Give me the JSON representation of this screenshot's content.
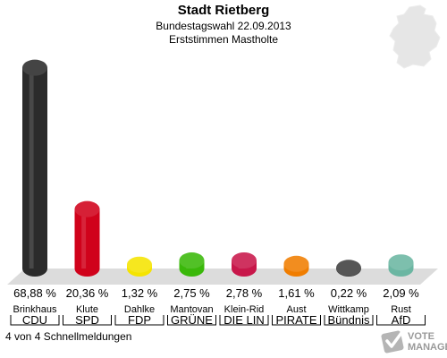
{
  "header": {
    "title": "Stadt Rietberg",
    "subtitle": "Bundestagswahl 22.09.2013",
    "subtitle2": "Erststimmen Mastholte"
  },
  "footer": {
    "status": "4 von 4 Schnellmeldungen"
  },
  "logo": {
    "line1": "VOTE",
    "line2": "MANAGER"
  },
  "chart_data": {
    "type": "bar",
    "categories": [
      "Brinkhaus",
      "Klute",
      "Dahlke",
      "Mantovan",
      "Klein-Rid",
      "Aust",
      "Wittkamp",
      "Rust"
    ],
    "parties": [
      "CDU",
      "SPD",
      "FDP",
      "GRÜNE",
      "DIE LIN",
      "PIRATE",
      "Bündnis",
      "AfD"
    ],
    "values": [
      68.88,
      20.36,
      1.32,
      2.75,
      2.78,
      1.61,
      0.22,
      2.09
    ],
    "value_labels": [
      "68,88 %",
      "20,36 %",
      "1,32 %",
      "2,75 %",
      "2,78 %",
      "1,61 %",
      "0,22 %",
      "2,09 %"
    ],
    "colors": [
      "#2b2b2b",
      "#d0021b",
      "#f5e400",
      "#3ab80a",
      "#c8174a",
      "#f07d00",
      "#3f3f3f",
      "#6bb6a2"
    ],
    "ylim": [
      0,
      70
    ],
    "grid": false,
    "legend": "none"
  }
}
